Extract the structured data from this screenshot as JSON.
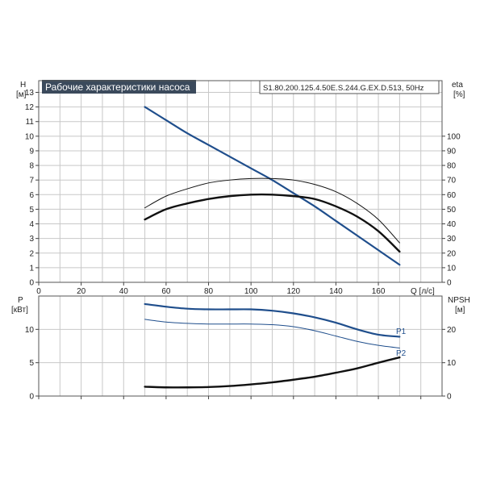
{
  "chart_data": [
    {
      "type": "line",
      "title": "Рабочие характеристики насоса",
      "subtitle": "S1.80.200.125.4.50E.S.244.G.EX.D.513, 50Hz",
      "xlabel": "Q [л/с]",
      "ylabel": "H",
      "ylabel_unit": "[м]",
      "y2label": "eta",
      "y2label_unit": "[%]",
      "xlim": [
        0,
        190
      ],
      "ylim": [
        0,
        13.8
      ],
      "y2lim": [
        0,
        138
      ],
      "xticks": [
        "0",
        "20",
        "40",
        "60",
        "80",
        "100",
        "120",
        "140",
        "160"
      ],
      "yticks": [
        "0",
        "1",
        "2",
        "3",
        "4",
        "5",
        "6",
        "7",
        "8",
        "9",
        "10",
        "11",
        "12",
        "13"
      ],
      "y2ticks": [
        "0",
        "10",
        "20",
        "30",
        "40",
        "50",
        "60",
        "70",
        "80",
        "90",
        "100"
      ],
      "grid": true,
      "series": [
        {
          "axis": "left",
          "color": "#1f4e8c",
          "width": 2.2,
          "x": [
            50,
            60,
            70,
            80,
            90,
            100,
            110,
            120,
            130,
            140,
            150,
            160,
            170
          ],
          "y": [
            12.0,
            11.1,
            10.2,
            9.4,
            8.6,
            7.8,
            7.0,
            6.1,
            5.2,
            4.2,
            3.2,
            2.2,
            1.2
          ]
        },
        {
          "axis": "right",
          "color": "#111111",
          "width": 1.0,
          "x": [
            50,
            60,
            70,
            80,
            90,
            100,
            110,
            120,
            130,
            140,
            150,
            160,
            170
          ],
          "y": [
            51,
            59,
            64,
            68,
            70,
            71,
            71,
            70,
            67,
            62,
            54,
            43,
            27
          ]
        },
        {
          "axis": "right",
          "color": "#111111",
          "width": 2.4,
          "x": [
            50,
            60,
            70,
            80,
            90,
            100,
            110,
            120,
            130,
            140,
            150,
            160,
            170
          ],
          "y": [
            43,
            50,
            54,
            57,
            59,
            60,
            60,
            59,
            57,
            52,
            45,
            35,
            21
          ]
        }
      ]
    },
    {
      "type": "line",
      "ylabel": "P",
      "ylabel_unit": "[кВт]",
      "y2label": "NPSH",
      "y2label_unit": "[м]",
      "xlim": [
        0,
        190
      ],
      "ylim": [
        0,
        15
      ],
      "y2lim": [
        0,
        30
      ],
      "yticks": [
        "0",
        "5",
        "10"
      ],
      "y2ticks": [
        "0",
        "10",
        "20"
      ],
      "grid": true,
      "series": [
        {
          "name": "P1",
          "axis": "left",
          "color": "#1f4e8c",
          "width": 2.2,
          "x": [
            50,
            60,
            70,
            80,
            90,
            100,
            110,
            120,
            130,
            140,
            150,
            160,
            170
          ],
          "y": [
            13.8,
            13.4,
            13.1,
            13.0,
            13.0,
            13.0,
            12.8,
            12.4,
            11.8,
            11.0,
            10.0,
            9.2,
            8.9
          ]
        },
        {
          "name": "P2",
          "axis": "left",
          "color": "#1f4e8c",
          "width": 1.0,
          "x": [
            50,
            60,
            70,
            80,
            90,
            100,
            110,
            120,
            130,
            140,
            150,
            160,
            170
          ],
          "y": [
            11.5,
            11.1,
            10.9,
            10.8,
            10.8,
            10.8,
            10.7,
            10.4,
            9.8,
            9.0,
            8.2,
            7.6,
            7.2
          ]
        },
        {
          "axis": "right",
          "color": "#111111",
          "width": 2.4,
          "x": [
            50,
            60,
            70,
            80,
            90,
            100,
            110,
            120,
            130,
            140,
            150,
            160,
            170
          ],
          "y": [
            2.8,
            2.6,
            2.6,
            2.7,
            3.0,
            3.5,
            4.1,
            4.9,
            5.8,
            7.0,
            8.3,
            10.0,
            11.6
          ]
        }
      ]
    }
  ]
}
